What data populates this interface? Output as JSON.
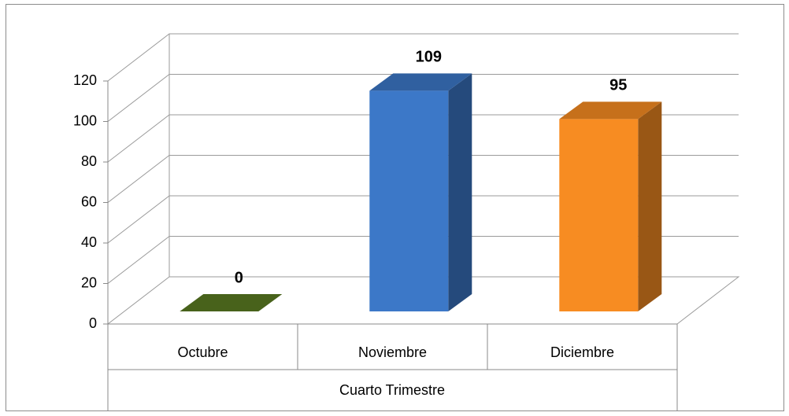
{
  "chart_data": {
    "type": "bar3d",
    "categories": [
      "Octubre",
      "Noviembre",
      "Diciembre"
    ],
    "group_label": "Cuarto Trimestre",
    "values": [
      0,
      109,
      95
    ],
    "colors": [
      "#5a7a22",
      "#3c78c8",
      "#f78c22"
    ],
    "ylim": [
      0,
      120
    ],
    "yticks": [
      0,
      20,
      40,
      60,
      80,
      100,
      120
    ],
    "grid": true
  }
}
